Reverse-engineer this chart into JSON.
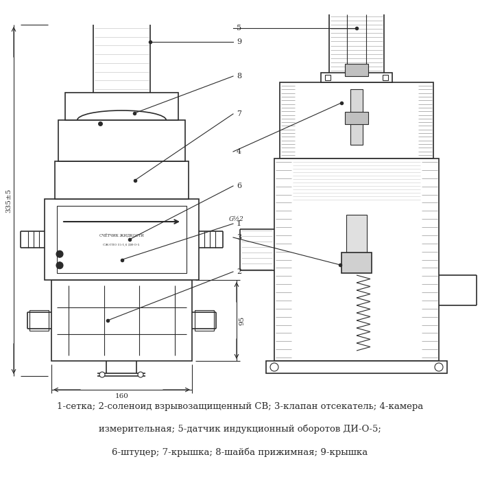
{
  "background_color": "#ffffff",
  "line_color": "#2a2a2a",
  "dim_color": "#2a2a2a",
  "caption_lines": [
    "1-сетка; 2-соленоид взрывозащищенный СВ; 3-клапан отсекатель; 4-камера",
    "измерительная; 5-датчик индукционный оборотов ДИ-О-5;",
    "6-штуцер; 7-крышка; 8-шайба прижимная; 9-крышка"
  ],
  "dim_labels": {
    "height_left": "335±5",
    "height_right": "95",
    "width_bottom": "160",
    "thread": "G½2"
  },
  "figsize": [
    7.0,
    7.01
  ],
  "dpi": 100
}
